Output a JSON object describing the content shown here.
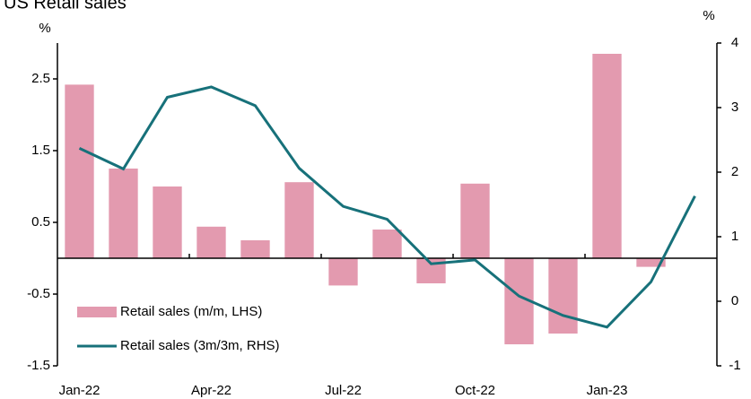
{
  "chart_data": {
    "type": "bar_line",
    "title": "US Retail sales",
    "y_unit": "%",
    "y2_unit": "%",
    "categories": [
      "Jan-22",
      null,
      null,
      "Apr-22",
      null,
      null,
      "Jul-22",
      null,
      null,
      "Oct-22",
      null,
      null,
      "Jan-23",
      null,
      null
    ],
    "series": [
      {
        "name": "Retail sales (m/m, LHS)",
        "type": "bar",
        "color": "#e39aaf",
        "values": [
          2.42,
          1.25,
          1.0,
          0.44,
          0.25,
          1.06,
          -0.38,
          0.4,
          -0.35,
          1.04,
          -1.2,
          -1.05,
          2.85,
          -0.12,
          null
        ]
      },
      {
        "name": "Retail sales (3m/3m, RHS)",
        "type": "line",
        "axis": "y2",
        "color": "#17717a",
        "values": [
          2.37,
          2.05,
          3.16,
          3.32,
          3.03,
          2.06,
          1.47,
          1.27,
          0.58,
          0.64,
          0.08,
          -0.22,
          -0.4,
          0.3,
          1.63
        ]
      }
    ],
    "ylim": [
      -1.5,
      3.0
    ],
    "yticks": [
      -1.5,
      -0.5,
      0.5,
      1.5,
      2.5
    ],
    "y2lim": [
      -1,
      4
    ],
    "y2ticks": [
      -1,
      0,
      1,
      2,
      3,
      4
    ],
    "legend": "lower left"
  }
}
